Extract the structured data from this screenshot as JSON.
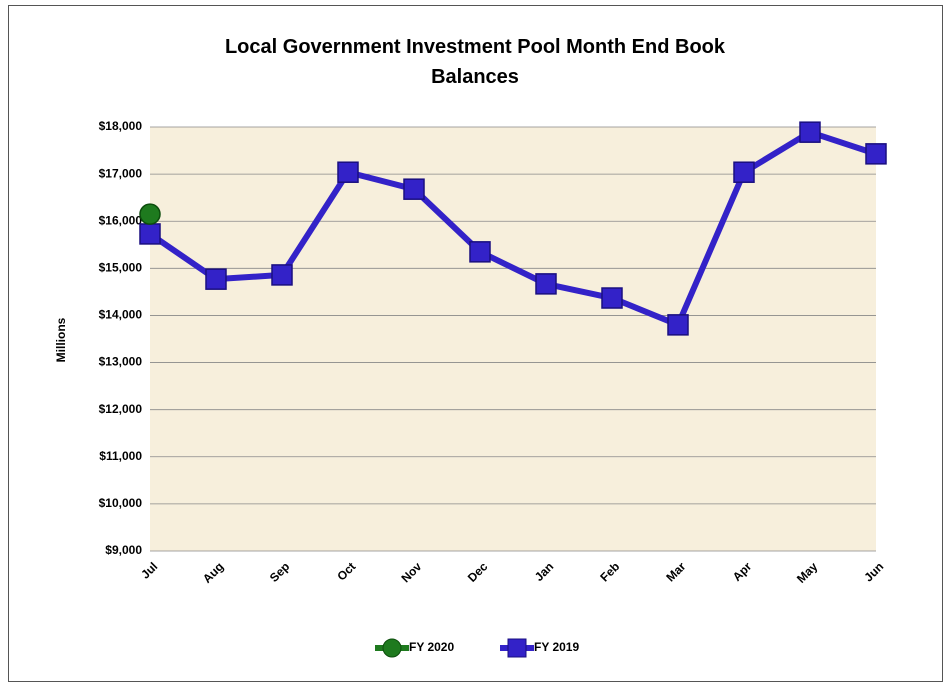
{
  "chart_data": {
    "type": "line",
    "title": "Local Government Investment Pool Month End Book Balances",
    "y_label": "Millions",
    "categories": [
      "Jul",
      "Aug",
      "Sep",
      "Oct",
      "Nov",
      "Dec",
      "Jan",
      "Feb",
      "Mar",
      "Apr",
      "May",
      "Jun"
    ],
    "series": [
      {
        "name": "FY 2020",
        "color": "#1e7a1e",
        "marker": "circle",
        "values": [
          16150,
          null,
          null,
          null,
          null,
          null,
          null,
          null,
          null,
          null,
          null,
          null
        ]
      },
      {
        "name": "FY 2019",
        "color": "#3322c8",
        "marker": "square",
        "values": [
          15730,
          14770,
          14860,
          17040,
          16680,
          15350,
          14670,
          14370,
          13800,
          17040,
          17890,
          17430
        ]
      }
    ],
    "ylim": [
      9000,
      18000
    ],
    "yticks": [
      {
        "value": 9000,
        "label": "$9,000"
      },
      {
        "value": 10000,
        "label": "$10,000"
      },
      {
        "value": 11000,
        "label": "$11,000"
      },
      {
        "value": 12000,
        "label": "$12,000"
      },
      {
        "value": 13000,
        "label": "$13,000"
      },
      {
        "value": 14000,
        "label": "$14,000"
      },
      {
        "value": 15000,
        "label": "$15,000"
      },
      {
        "value": 16000,
        "label": "$16,000"
      },
      {
        "value": 17000,
        "label": "$17,000"
      },
      {
        "value": 18000,
        "label": "$18,000"
      }
    ],
    "grid": true,
    "legend": "bottom"
  }
}
